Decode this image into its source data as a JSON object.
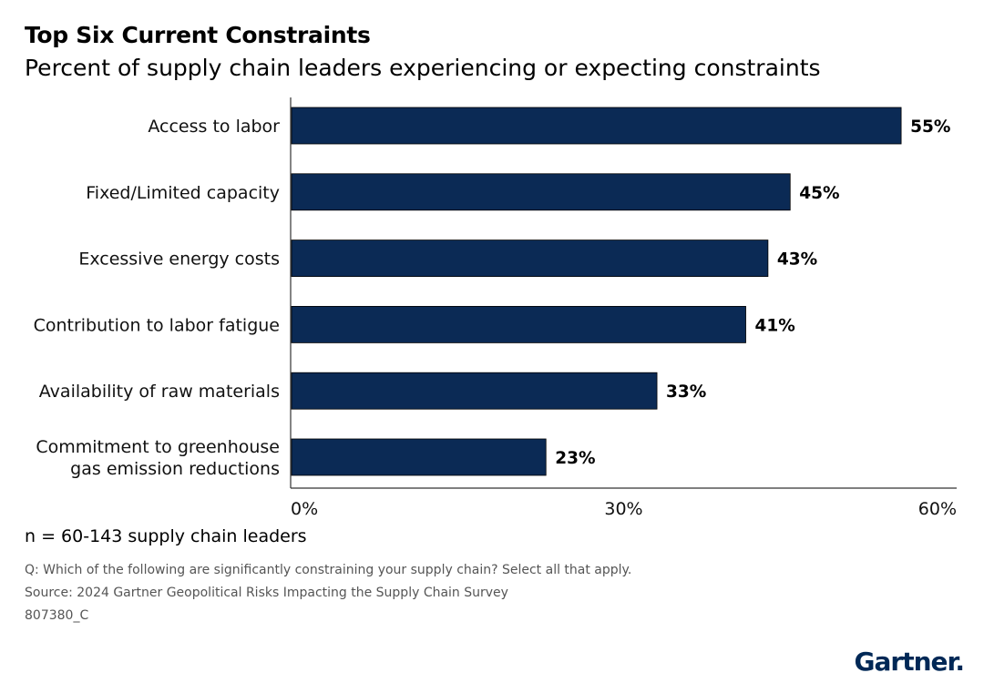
{
  "header": {
    "title": "Top Six Current Constraints",
    "subtitle": "Percent of supply chain leaders experiencing or expecting constraints"
  },
  "chart_data": {
    "type": "bar",
    "orientation": "horizontal",
    "title": "Top Six Current Constraints",
    "subtitle": "Percent of supply chain leaders experiencing or expecting constraints",
    "categories": [
      [
        "Access to labor"
      ],
      [
        "Fixed/Limited capacity"
      ],
      [
        "Excessive energy costs"
      ],
      [
        "Contribution to labor fatigue"
      ],
      [
        "Availability of raw materials"
      ],
      [
        "Commitment to greenhouse",
        "gas emission reductions"
      ]
    ],
    "values": [
      55,
      45,
      43,
      41,
      33,
      23
    ],
    "value_labels": [
      "55%",
      "45%",
      "43%",
      "41%",
      "33%",
      "23%"
    ],
    "xlim": [
      0,
      60
    ],
    "ticks": [
      0,
      30,
      60
    ],
    "tick_labels": [
      "0%",
      "30%",
      "60%"
    ],
    "bar_color": "#0b2a55",
    "grid": false
  },
  "footer": {
    "sample": "n = 60-143 supply chain leaders",
    "question": "Q: Which of the following are significantly constraining your supply chain? Select all that apply.",
    "source": "Source: 2024 Gartner Geopolitical Risks Impacting the Supply Chain Survey",
    "code": "807380_C",
    "logo_text": "Gartner."
  }
}
